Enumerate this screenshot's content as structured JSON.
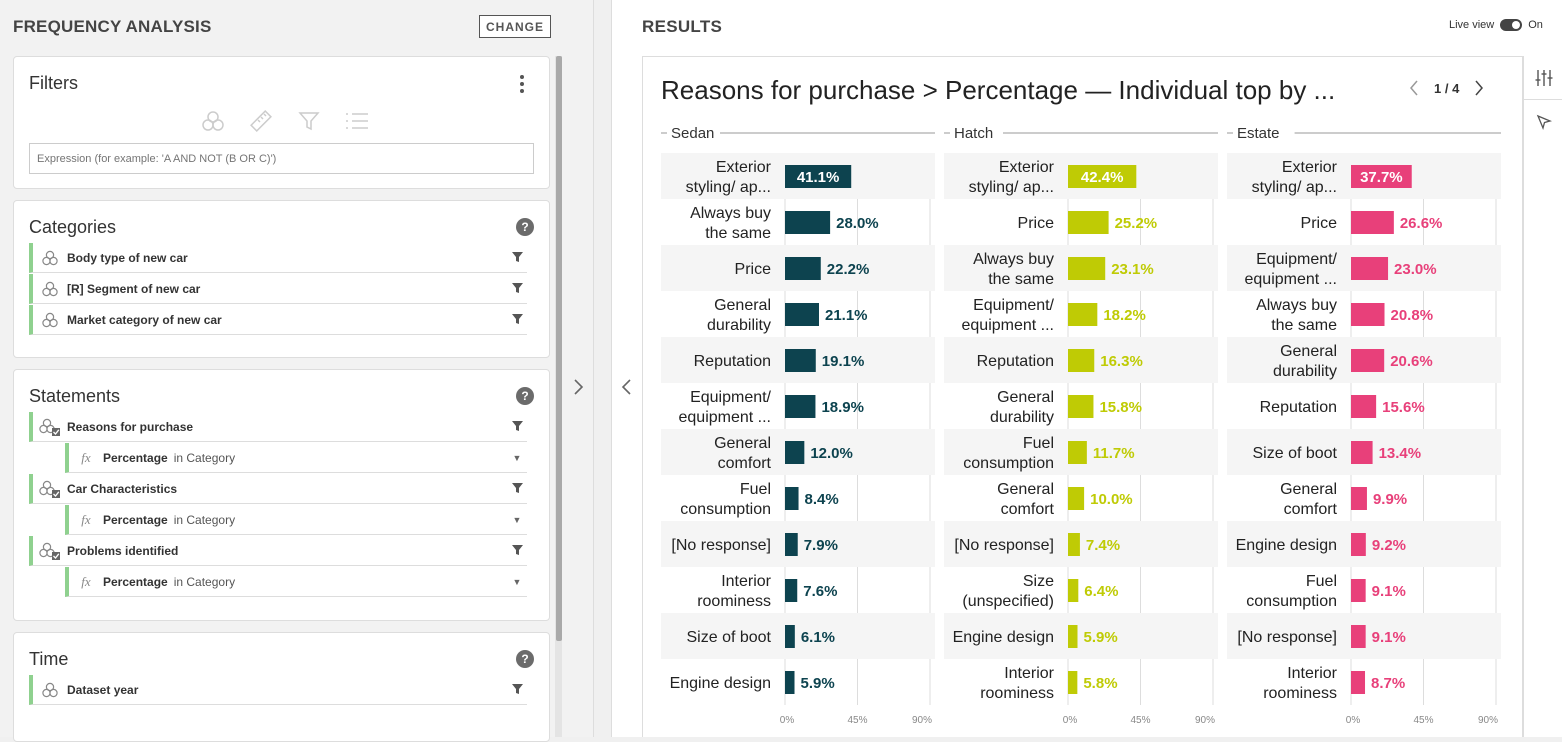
{
  "left": {
    "title": "FREQUENCY ANALYSIS",
    "change_label": "CHANGE",
    "filters": {
      "title": "Filters",
      "expression_placeholder": "Expression (for example: 'A AND NOT (B OR C)')"
    },
    "categories": {
      "title": "Categories",
      "items": [
        "Body type of new car",
        "[R] Segment of new car",
        "Market category of new car"
      ]
    },
    "statements": {
      "title": "Statements",
      "items": [
        {
          "label": "Reasons for purchase",
          "sub_label": "Percentage",
          "sub_in": "in Category"
        },
        {
          "label": "Car Characteristics",
          "sub_label": "Percentage",
          "sub_in": "in Category"
        },
        {
          "label": "Problems identified",
          "sub_label": "Percentage",
          "sub_in": "in Category"
        }
      ]
    },
    "time": {
      "title": "Time",
      "items": [
        "Dataset year"
      ]
    },
    "help_label": "?"
  },
  "right": {
    "title": "RESULTS",
    "live_view_label": "Live view",
    "live_view_state": "On",
    "pager": "1 / 4"
  },
  "chart_data": {
    "type": "bar",
    "orientation": "horizontal",
    "title": "Reasons for purchase > Percentage — Individual top by ...",
    "xlim": [
      0,
      90
    ],
    "xticks": [
      "0%",
      "45%",
      "90%"
    ],
    "panels": [
      {
        "name": "Sedan",
        "color": "#0d434f",
        "categories": [
          "Exterior styling/ ap...",
          "Always buy the same",
          "Price",
          "General durability",
          "Reputation",
          "Equipment/ equipment ...",
          "General comfort",
          "Fuel consumption",
          "[No response]",
          "Interior roominess",
          "Size of boot",
          "Engine design"
        ],
        "values": [
          41.1,
          28.0,
          22.2,
          21.1,
          19.1,
          18.9,
          12.0,
          8.4,
          7.9,
          7.6,
          6.1,
          5.9
        ],
        "labels": [
          "41.1%",
          "28.0%",
          "22.2%",
          "21.1%",
          "19.1%",
          "18.9%",
          "12.0%",
          "8.4%",
          "7.9%",
          "7.6%",
          "6.1%",
          "5.9%"
        ]
      },
      {
        "name": "Hatch",
        "color": "#bfcb05",
        "categories": [
          "Exterior styling/ ap...",
          "Price",
          "Always buy the same",
          "Equipment/ equipment ...",
          "Reputation",
          "General durability",
          "Fuel consumption",
          "General comfort",
          "[No response]",
          "Size (unspecified)",
          "Engine design",
          "Interior roominess"
        ],
        "values": [
          42.4,
          25.2,
          23.1,
          18.2,
          16.3,
          15.8,
          11.7,
          10.0,
          7.4,
          6.4,
          5.9,
          5.8
        ],
        "labels": [
          "42.4%",
          "25.2%",
          "23.1%",
          "18.2%",
          "16.3%",
          "15.8%",
          "11.7%",
          "10.0%",
          "7.4%",
          "6.4%",
          "5.9%",
          "5.8%"
        ]
      },
      {
        "name": "Estate",
        "color": "#e8407a",
        "categories": [
          "Exterior styling/ ap...",
          "Price",
          "Equipment/ equipment ...",
          "Always buy the same",
          "General durability",
          "Reputation",
          "Size of boot",
          "General comfort",
          "Engine design",
          "Fuel consumption",
          "[No response]",
          "Interior roominess"
        ],
        "values": [
          37.7,
          26.6,
          23.0,
          20.8,
          20.6,
          15.6,
          13.4,
          9.9,
          9.2,
          9.1,
          9.1,
          8.7
        ],
        "labels": [
          "37.7%",
          "26.6%",
          "23.0%",
          "20.8%",
          "20.6%",
          "15.6%",
          "13.4%",
          "9.9%",
          "9.2%",
          "9.1%",
          "9.1%",
          "8.7%"
        ]
      }
    ]
  }
}
